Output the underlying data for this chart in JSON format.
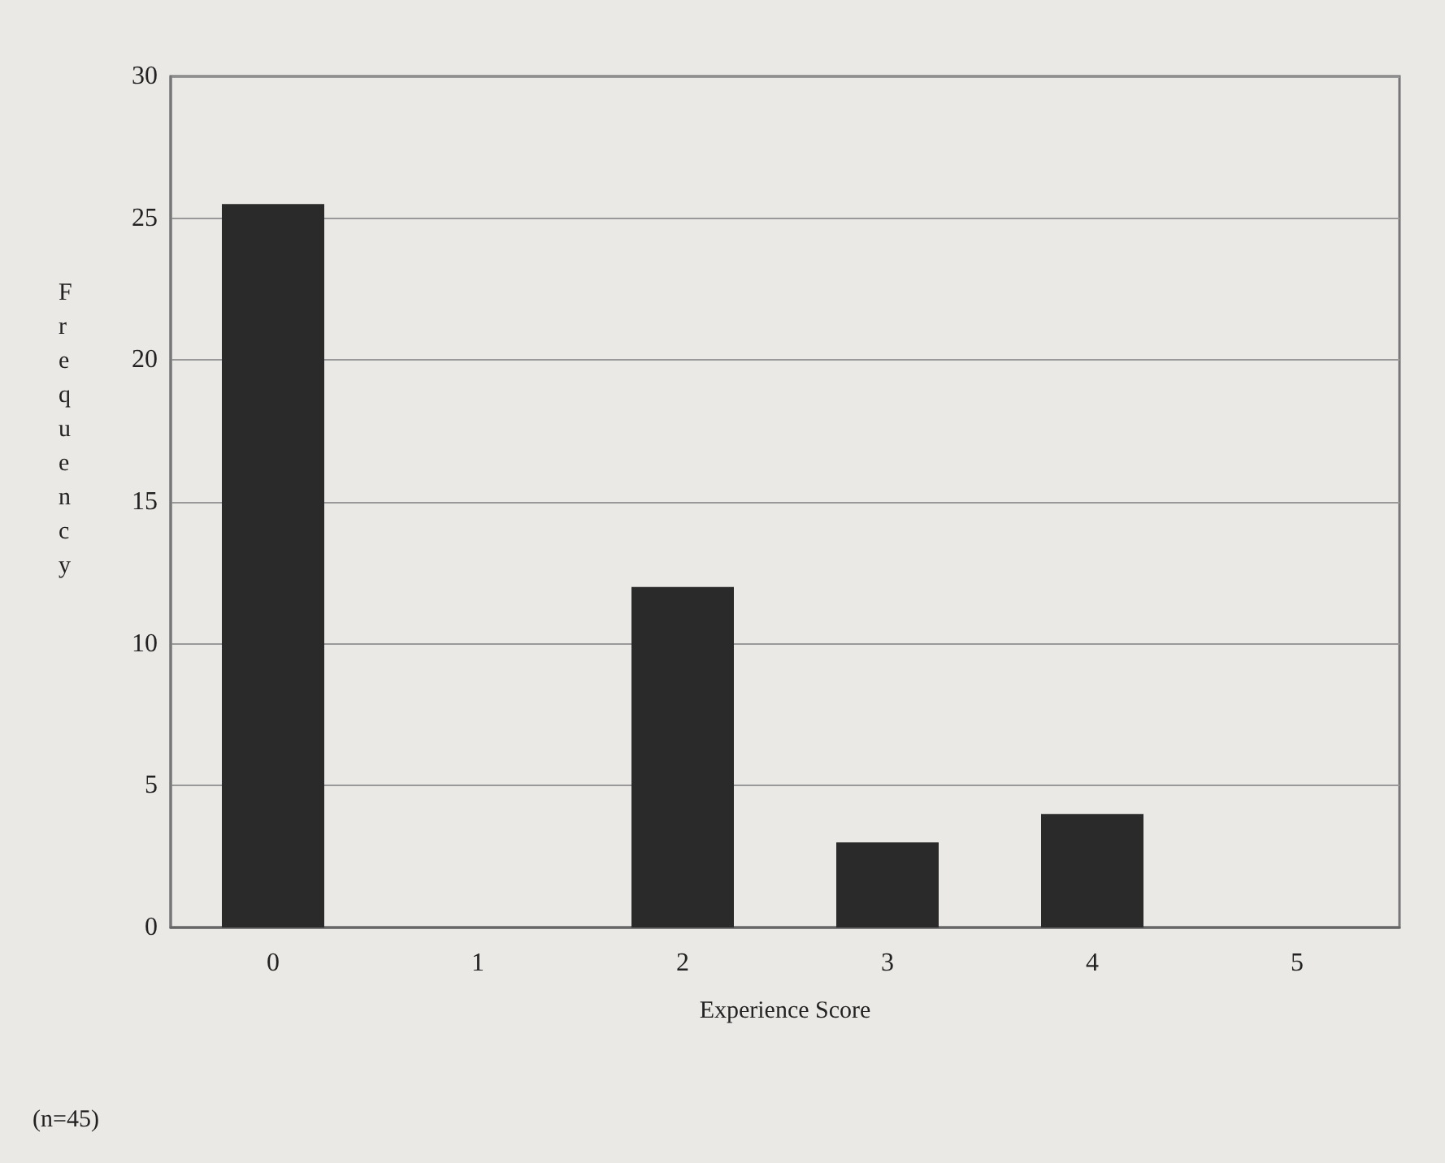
{
  "chart_data": {
    "type": "bar",
    "xlabel": "Experience Score",
    "ylabel": "Frequency",
    "categories": [
      "0",
      "1",
      "2",
      "3",
      "4",
      "5"
    ],
    "values": [
      25.5,
      0,
      12,
      3,
      4,
      0
    ],
    "color": "#2a2a2a",
    "ylim": [
      0,
      30
    ],
    "yticks": [
      0,
      5,
      10,
      15,
      20,
      25,
      30
    ],
    "grid": "y",
    "annotations": [
      "(n=45)"
    ]
  }
}
